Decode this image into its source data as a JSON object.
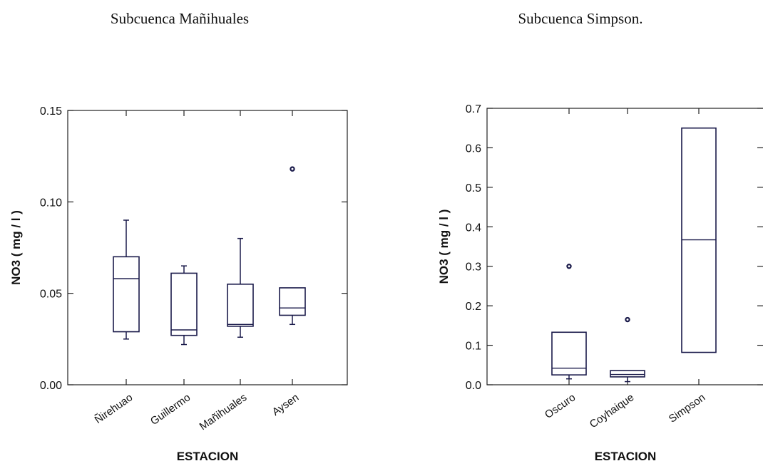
{
  "titles": {
    "left": "Subcuenca Mañihuales",
    "right": "Subcuenca Simpson."
  },
  "chart_data": [
    {
      "type": "box",
      "title": "Subcuenca Mañihuales",
      "xlabel": "ESTACION",
      "ylabel": "NO3 ( mg / l )",
      "ylim": [
        0,
        0.15
      ],
      "yticks": [
        0.0,
        0.05,
        0.1,
        0.15
      ],
      "ytick_labels": [
        "0.00",
        "0.05",
        "0.10",
        "0.15"
      ],
      "categories": [
        "Ñirehuao",
        "Guillermo",
        "Mañihuales",
        "Aysen"
      ],
      "boxes": [
        {
          "whisker_low": 0.025,
          "q1": 0.029,
          "median": 0.058,
          "q3": 0.07,
          "whisker_high": 0.09,
          "outliers": []
        },
        {
          "whisker_low": 0.022,
          "q1": 0.027,
          "median": 0.03,
          "q3": 0.061,
          "whisker_high": 0.065,
          "outliers": []
        },
        {
          "whisker_low": 0.026,
          "q1": 0.032,
          "median": 0.033,
          "q3": 0.055,
          "whisker_high": 0.08,
          "outliers": []
        },
        {
          "whisker_low": 0.033,
          "q1": 0.038,
          "median": 0.042,
          "q3": 0.053,
          "whisker_high": 0.053,
          "outliers": [
            0.118
          ]
        }
      ]
    },
    {
      "type": "box",
      "title": "Subcuenca Simpson.",
      "xlabel": "ESTACION",
      "ylabel": "NO3 ( mg / l )",
      "ylim": [
        0,
        0.7
      ],
      "yticks": [
        0.0,
        0.1,
        0.2,
        0.3,
        0.4,
        0.5,
        0.6,
        0.7
      ],
      "ytick_labels": [
        "0.0",
        "0.1",
        "0.2",
        "0.3",
        "0.4",
        "0.5",
        "0.6",
        "0.7"
      ],
      "categories": [
        "Oscuro",
        "Coyhaique",
        "Simpson"
      ],
      "boxes": [
        {
          "whisker_low": 0.015,
          "q1": 0.025,
          "median": 0.042,
          "q3": 0.133,
          "whisker_high": 0.133,
          "outliers": [
            0.3
          ]
        },
        {
          "whisker_low": 0.008,
          "q1": 0.02,
          "median": 0.026,
          "q3": 0.036,
          "whisker_high": 0.036,
          "outliers": [
            0.165
          ]
        },
        {
          "whisker_low": 0.082,
          "q1": 0.082,
          "median": 0.367,
          "q3": 0.65,
          "whisker_high": 0.65,
          "outliers": []
        }
      ]
    }
  ]
}
